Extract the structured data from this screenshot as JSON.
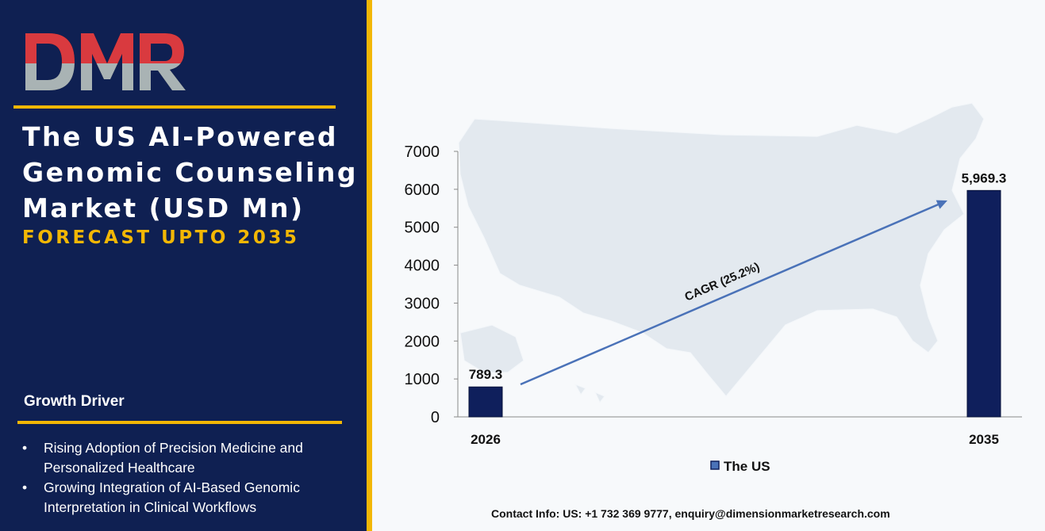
{
  "logo_text": "DMR",
  "title_lines": [
    "The US AI-Powered",
    "Genomic Counseling",
    "Market (USD Mn)"
  ],
  "subtitle": "FORECAST UPTO 2035",
  "growth_driver": {
    "heading": "Growth Driver",
    "items": [
      "Rising Adoption of Precision Medicine and Personalized Healthcare",
      "Growing Integration of AI-Based Genomic Interpretation in Clinical Workflows"
    ]
  },
  "contact": "Contact Info: US: +1 732 369 9777, enquiry@dimensionmarketresearch.com",
  "colors": {
    "panel": "#0f2052",
    "accent": "#f2b705",
    "bar": "#0f1f5c",
    "arrow": "#4a72b8",
    "logo_red": "#d93a3f",
    "logo_grey": "#a9b3b4"
  },
  "chart_data": {
    "type": "bar",
    "categories": [
      "2026",
      "2035"
    ],
    "series": [
      {
        "name": "The US",
        "values": [
          789.3,
          5969.3
        ]
      }
    ],
    "data_labels": [
      "789.3",
      "5,969.3"
    ],
    "ylim": [
      0,
      7000
    ],
    "yticks": [
      0,
      1000,
      2000,
      3000,
      4000,
      5000,
      6000,
      7000
    ],
    "annotation": "CAGR (25.2%)",
    "legend": "bottom",
    "grid": false
  }
}
